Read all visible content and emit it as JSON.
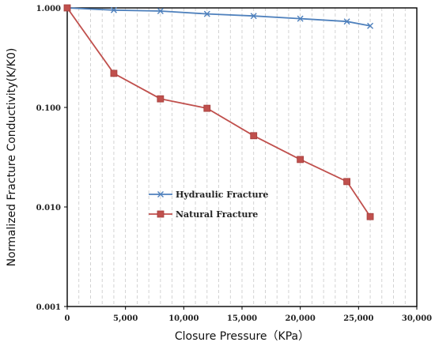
{
  "chart_data": {
    "type": "line",
    "title": "",
    "xlabel": "Closure Pressure（KPa）",
    "ylabel": "Normalized Fracture Conductivity(K/K0)",
    "x_scale": "linear",
    "y_scale": "log",
    "xlim": [
      0,
      30000
    ],
    "ylim": [
      0.001,
      1
    ],
    "x_ticks": [
      0,
      5000,
      10000,
      15000,
      20000,
      25000,
      30000
    ],
    "x_tick_labels": [
      "0",
      "5,000",
      "10,000",
      "15,000",
      "20,000",
      "25,000",
      "30,000"
    ],
    "y_ticks": [
      0.001,
      0.01,
      0.1,
      1
    ],
    "y_tick_labels": [
      "0.001",
      "0.010",
      "0.100",
      "1.000"
    ],
    "grid": "vertical dashed minor",
    "legend_position": "center-left",
    "series": [
      {
        "name": "Hydraulic Fracture",
        "color": "#4f81bd",
        "marker": "x",
        "x": [
          0,
          4000,
          8000,
          12000,
          16000,
          20000,
          24000,
          26000
        ],
        "y": [
          1.0,
          0.95,
          0.93,
          0.87,
          0.83,
          0.78,
          0.73,
          0.66
        ]
      },
      {
        "name": "Natural Fracture",
        "color": "#c0504d",
        "marker": "square",
        "x": [
          0,
          4000,
          8000,
          12000,
          16000,
          20000,
          24000,
          26000
        ],
        "y": [
          1.0,
          0.22,
          0.122,
          0.098,
          0.052,
          0.03,
          0.018,
          0.008
        ]
      }
    ]
  }
}
